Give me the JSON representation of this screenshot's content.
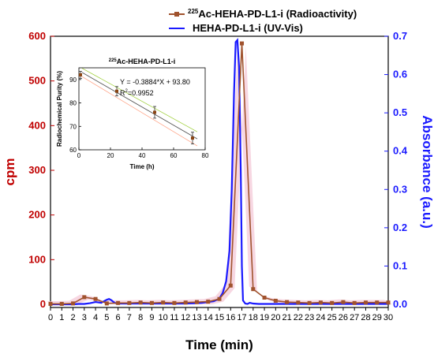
{
  "chart_data": [
    {
      "type": "line",
      "xlabel": "Time (min)",
      "ylabel_left": "cpm",
      "ylabel_right": "Absorbance (a.u.)",
      "xlim": [
        0,
        30
      ],
      "ylim_left": [
        0,
        600
      ],
      "ylim_right": [
        0,
        0.7
      ],
      "x_ticks": [
        0,
        1,
        2,
        3,
        4,
        5,
        6,
        7,
        8,
        9,
        10,
        11,
        12,
        13,
        14,
        15,
        16,
        17,
        18,
        19,
        20,
        21,
        22,
        23,
        24,
        25,
        26,
        27,
        28,
        29,
        30
      ],
      "y_left_ticks": [
        0,
        100,
        200,
        300,
        400,
        500,
        600
      ],
      "y_right_ticks": [
        0.0,
        0.1,
        0.2,
        0.3,
        0.4,
        0.5,
        0.6,
        0.7
      ],
      "legend_position": "top-right",
      "series": [
        {
          "name_sup": "225",
          "name": "Ac-HEHA-PD-L1-i (Radioactivity)",
          "axis": "left",
          "color": "#a0522d",
          "x": [
            0,
            1,
            2,
            3,
            4,
            5,
            6,
            7,
            8,
            9,
            10,
            11,
            12,
            13,
            14,
            15,
            16,
            17,
            18,
            19,
            20,
            21,
            22,
            23,
            24,
            25,
            26,
            27,
            28,
            29,
            30
          ],
          "y": [
            1,
            1,
            2,
            16,
            12,
            2,
            3,
            3,
            4,
            3,
            4,
            3,
            4,
            5,
            6,
            12,
            42,
            584,
            34,
            15,
            8,
            5,
            4,
            3,
            4,
            3,
            5,
            3,
            4,
            4,
            4
          ]
        },
        {
          "name": "HEHA-PD-L1-i (UV-Vis)",
          "axis": "right",
          "color": "#1a1aff",
          "x": [
            0,
            1,
            2,
            2.5,
            3,
            3.5,
            4,
            4.5,
            5,
            5.2,
            5.4,
            5.6,
            5.8,
            6,
            7,
            8,
            9,
            10,
            11,
            12,
            13,
            13.5,
            14,
            14.5,
            15,
            15.3,
            15.6,
            15.9,
            16.1,
            16.3,
            16.45,
            16.6,
            16.75,
            16.9,
            17.0,
            17.1,
            17.3,
            17.5,
            17.7,
            18,
            18.5,
            19,
            20,
            21,
            22,
            23,
            24,
            25,
            26,
            27,
            28,
            29,
            30
          ],
          "y": [
            0,
            0,
            0,
            0.001,
            0.001,
            0.003,
            0.006,
            0.004,
            0.012,
            0.014,
            0.011,
            0.006,
            0.003,
            0.002,
            0.002,
            0.002,
            0.002,
            0.002,
            0.002,
            0.002,
            0.003,
            0.004,
            0.006,
            0.008,
            0.015,
            0.03,
            0.06,
            0.14,
            0.3,
            0.55,
            0.685,
            0.69,
            0.62,
            0.35,
            0.1,
            0.01,
            0.002,
            0.001,
            0.004,
            0.002,
            0.001,
            0.001,
            0.001,
            0.001,
            0.001,
            0.001,
            0.001,
            0.001,
            0.001,
            0.001,
            0.001,
            0.001,
            0.001
          ]
        }
      ]
    },
    {
      "type": "scatter",
      "title_sup": "225",
      "title": "Ac-HEHA-PD-L1-i",
      "xlabel": "Time (h)",
      "ylabel": "Radiochemical Purity (%)",
      "xlim": [
        0,
        80
      ],
      "ylim": [
        60,
        95
      ],
      "x_ticks": [
        0,
        20,
        40,
        60,
        80
      ],
      "y_ticks": [
        60,
        70,
        80,
        90
      ],
      "points": [
        {
          "x": 1,
          "y": 92,
          "err": 1.5
        },
        {
          "x": 24,
          "y": 85,
          "err": 2
        },
        {
          "x": 48,
          "y": 76,
          "err": 2.5
        },
        {
          "x": 72,
          "y": 65,
          "err": 2.5
        }
      ],
      "fit_line": {
        "slope": -0.3884,
        "intercept": 93.8
      },
      "equation": "Y = -0.3884*X + 93.80",
      "r2_label": "R",
      "r2_sup": "2",
      "r2_value": "=0.9952"
    }
  ]
}
